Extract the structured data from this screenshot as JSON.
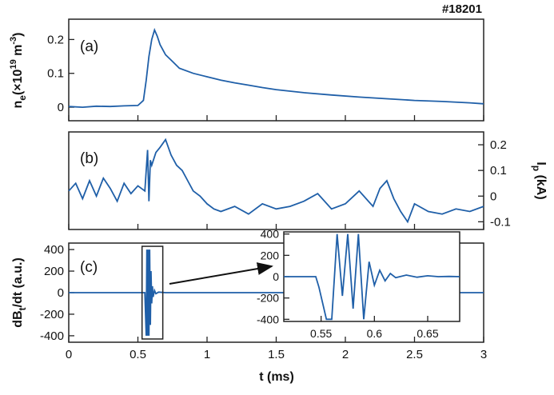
{
  "shot_label": "#18201",
  "colors": {
    "trace": "#1f5fa8",
    "frame": "#222222",
    "background": "#ffffff"
  },
  "chart_data": [
    {
      "type": "line",
      "panel_label": "(a)",
      "xlim": [
        0,
        3
      ],
      "ylim": [
        -0.04,
        0.26
      ],
      "y_axis_side": "left",
      "ylabel_base": "n",
      "ylabel_sub": "e",
      "ylabel_rest": "(×10",
      "ylabel_sup1": "19",
      "ylabel_mid": " m",
      "ylabel_sup2": "-3",
      "ylabel_end": ")",
      "yticks": [
        0,
        0.1,
        0.2
      ],
      "ytick_labels": [
        "0",
        "0.1",
        "0.2"
      ],
      "x": [
        0,
        0.1,
        0.2,
        0.3,
        0.4,
        0.5,
        0.54,
        0.56,
        0.58,
        0.6,
        0.62,
        0.64,
        0.66,
        0.68,
        0.7,
        0.75,
        0.8,
        0.9,
        1.0,
        1.1,
        1.2,
        1.3,
        1.4,
        1.5,
        1.7,
        1.9,
        2.1,
        2.3,
        2.5,
        2.7,
        2.9,
        3.0
      ],
      "y": [
        0.002,
        0.0,
        0.003,
        0.002,
        0.004,
        0.005,
        0.02,
        0.08,
        0.15,
        0.2,
        0.228,
        0.21,
        0.185,
        0.17,
        0.155,
        0.135,
        0.115,
        0.1,
        0.09,
        0.08,
        0.072,
        0.065,
        0.058,
        0.052,
        0.043,
        0.036,
        0.03,
        0.025,
        0.02,
        0.017,
        0.013,
        0.01
      ]
    },
    {
      "type": "line",
      "panel_label": "(b)",
      "xlim": [
        0,
        3
      ],
      "ylim": [
        -0.13,
        0.25
      ],
      "y_axis_side": "right",
      "ylabel_base": "I",
      "ylabel_sub": "p",
      "ylabel_rest": " (kA)",
      "yticks": [
        -0.1,
        0,
        0.1,
        0.2
      ],
      "ytick_labels": [
        "-0.1",
        "0",
        "0.1",
        "0.2"
      ],
      "x": [
        0,
        0.05,
        0.1,
        0.15,
        0.2,
        0.25,
        0.3,
        0.35,
        0.4,
        0.45,
        0.5,
        0.55,
        0.57,
        0.58,
        0.59,
        0.6,
        0.63,
        0.66,
        0.7,
        0.74,
        0.78,
        0.82,
        0.86,
        0.9,
        0.95,
        1.0,
        1.05,
        1.1,
        1.2,
        1.3,
        1.4,
        1.5,
        1.6,
        1.7,
        1.8,
        1.9,
        2.0,
        2.1,
        2.2,
        2.25,
        2.3,
        2.35,
        2.4,
        2.45,
        2.5,
        2.6,
        2.7,
        2.8,
        2.9,
        3.0
      ],
      "y": [
        0.02,
        0.05,
        -0.01,
        0.06,
        0.0,
        0.07,
        0.03,
        -0.02,
        0.05,
        0.01,
        0.04,
        0.02,
        0.18,
        -0.02,
        0.14,
        0.12,
        0.17,
        0.19,
        0.22,
        0.16,
        0.12,
        0.1,
        0.06,
        0.02,
        0.0,
        -0.03,
        -0.05,
        -0.06,
        -0.04,
        -0.07,
        -0.03,
        -0.05,
        -0.04,
        -0.02,
        0.01,
        -0.05,
        -0.03,
        0.02,
        -0.04,
        0.03,
        0.06,
        -0.01,
        -0.06,
        -0.1,
        -0.03,
        -0.06,
        -0.07,
        -0.05,
        -0.06,
        -0.04
      ]
    },
    {
      "type": "line",
      "panel_label": "(c)",
      "xlim": [
        0,
        3
      ],
      "ylim": [
        -460,
        460
      ],
      "y_axis_side": "left",
      "ylabel_base": "dB",
      "ylabel_sub": "t",
      "ylabel_rest": "/dt (a.u.)",
      "yticks": [
        -400,
        -200,
        0,
        200,
        400
      ],
      "ytick_labels": [
        "-400",
        "-200",
        "0",
        "200",
        "400"
      ],
      "xticks": [
        0,
        0.5,
        1,
        1.5,
        2,
        2.5,
        3
      ],
      "xtick_labels": [
        "0",
        "0.5",
        "1",
        "1.5",
        "2",
        "2.5",
        "3"
      ],
      "xlabel": "t (ms)",
      "x": [
        0,
        0.54,
        0.55,
        0.56,
        0.565,
        0.57,
        0.575,
        0.58,
        0.585,
        0.59,
        0.595,
        0.6,
        0.605,
        0.61,
        0.62,
        0.63,
        0.65,
        0.7,
        3.0
      ],
      "y": [
        0,
        0,
        0,
        -400,
        400,
        -400,
        400,
        -400,
        400,
        -300,
        200,
        -100,
        60,
        -40,
        20,
        -10,
        5,
        0,
        0
      ],
      "zoom_box_x": [
        0.53,
        0.68
      ],
      "zoom_box_y": [
        -430,
        430
      ]
    },
    {
      "type": "line",
      "inset_of": "(c)",
      "xlim": [
        0.515,
        0.68
      ],
      "ylim": [
        -420,
        420
      ],
      "xticks": [
        0.55,
        0.6,
        0.65
      ],
      "xtick_labels": [
        "0.55",
        "0.6",
        "0.65"
      ],
      "yticks": [
        -400,
        -200,
        0,
        200,
        400
      ],
      "ytick_labels": [
        "-400",
        "-200",
        "0",
        "200",
        "400"
      ],
      "x": [
        0.515,
        0.545,
        0.548,
        0.555,
        0.56,
        0.565,
        0.57,
        0.575,
        0.58,
        0.585,
        0.59,
        0.595,
        0.6,
        0.605,
        0.61,
        0.615,
        0.62,
        0.63,
        0.64,
        0.65,
        0.66,
        0.67,
        0.68
      ],
      "y": [
        0,
        0,
        -100,
        -400,
        -400,
        400,
        -180,
        400,
        -300,
        400,
        -400,
        140,
        -80,
        60,
        -40,
        30,
        -10,
        15,
        -5,
        8,
        0,
        2,
        0
      ]
    }
  ]
}
